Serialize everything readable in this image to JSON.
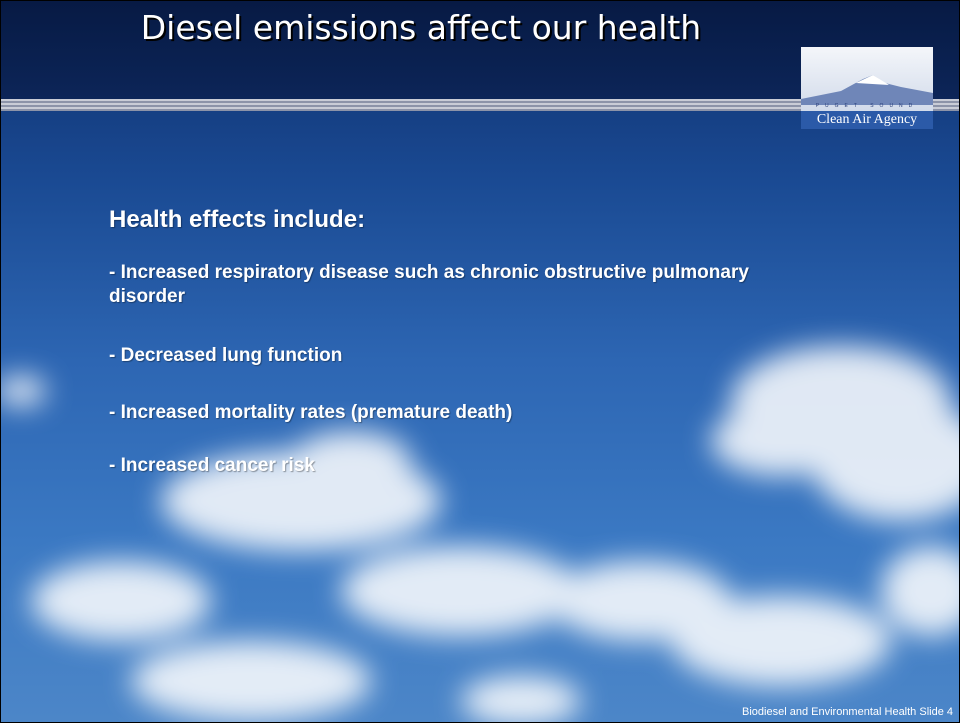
{
  "title": "Diesel emissions affect our health",
  "logo": {
    "top": "PUGET SOUND",
    "name": "Clean Air Agency"
  },
  "heading": "Health effects include:",
  "bullets": [
    "-  Increased respiratory disease such as chronic obstructive pulmonary disorder",
    "-  Decreased lung function",
    "-  Increased mortality rates (premature death)",
    "-  Increased cancer risk"
  ],
  "footer": "Biodiesel and Environmental Health  Slide 4"
}
